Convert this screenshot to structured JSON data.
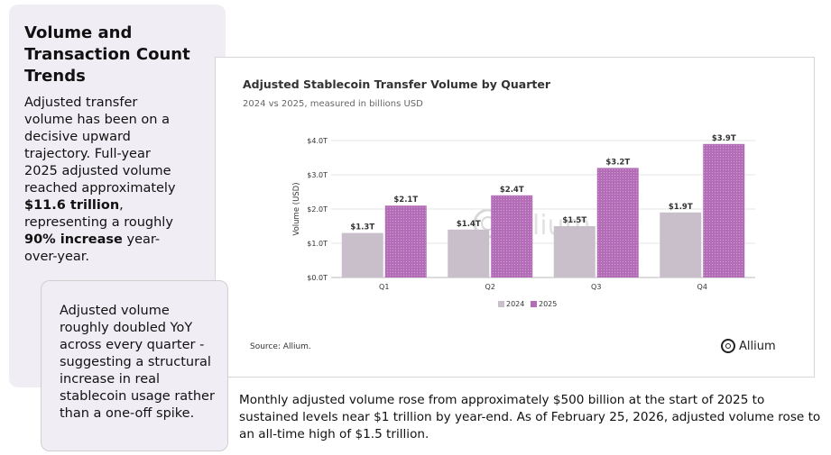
{
  "left_panel": {
    "title": "Volume and Transaction Count Trends",
    "text_part1": "Adjusted transfer volume has been on a decisive upward trajectory. Full-year 2025 adjusted volume reached approximately ",
    "text_bold1": "$11.6 trillion",
    "text_part2": ", representing a roughly ",
    "text_bold2": "90% increase",
    "text_part3": " year-over-year."
  },
  "quote_card": {
    "text": "Adjusted volume roughly doubled YoY across every quarter - suggesting a structural increase in real stablecoin usage rather than a one-off spike."
  },
  "chart_card": {
    "source": "Source: Allium.",
    "brand": "Allium",
    "watermark": "Allium"
  },
  "chart_data": {
    "type": "bar",
    "title": "Adjusted Stablecoin Transfer Volume by Quarter",
    "subtitle": "2024 vs 2025, measured in billions USD",
    "ylabel": "Volume (USD)",
    "xlabel": "",
    "ylim": [
      0,
      4.0
    ],
    "yticks": [
      {
        "value": 0,
        "label": "$0.0T"
      },
      {
        "value": 1,
        "label": "$1.0T"
      },
      {
        "value": 2,
        "label": "$2.0T"
      },
      {
        "value": 3,
        "label": "$3.0T"
      },
      {
        "value": 4,
        "label": "$4.0T"
      }
    ],
    "categories": [
      "Q1",
      "Q2",
      "Q3",
      "Q4"
    ],
    "series": [
      {
        "name": "2024",
        "color": "#c9bfcb",
        "values": [
          1.3,
          1.4,
          1.5,
          1.9
        ],
        "labels": [
          "$1.3T",
          "$1.4T",
          "$1.5T",
          "$1.9T"
        ]
      },
      {
        "name": "2025",
        "color": "#b36cb6",
        "values": [
          2.1,
          2.4,
          3.2,
          3.9
        ],
        "labels": [
          "$2.1T",
          "$2.4T",
          "$3.2T",
          "$3.9T"
        ]
      }
    ],
    "legend_position": "bottom-center"
  },
  "bottom_text": "Monthly adjusted volume rose from approximately $500 billion at the start of 2025 to sustained levels near $1 trillion by year-end. As of February 25, 2026, adjusted volume rose to an all-time high of $1.5 trillion."
}
